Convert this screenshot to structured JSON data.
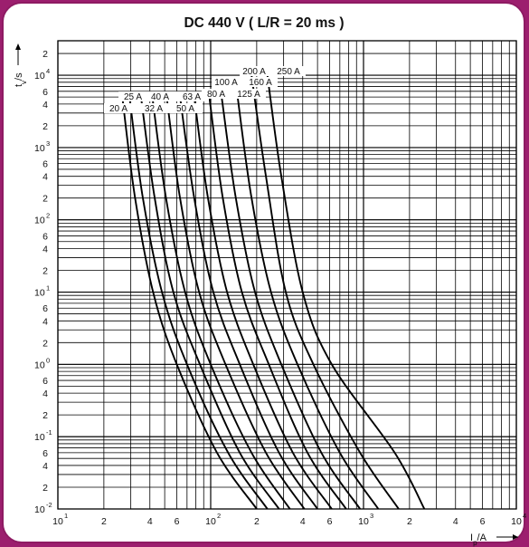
{
  "chart_data": {
    "type": "line",
    "title": "DC 440 V ( L/R = 20 ms )",
    "xlabel": "I_p/A",
    "ylabel": "t_v/s",
    "x_scale": "log",
    "y_scale": "log",
    "xlim": [
      10,
      10000
    ],
    "ylim": [
      0.01,
      30000
    ],
    "x_ticks": [
      {
        "label": "10",
        "exp": "1"
      },
      {
        "label": "2"
      },
      {
        "label": "4"
      },
      {
        "label": "6"
      },
      {
        "label": "10",
        "exp": "2"
      },
      {
        "label": "2"
      },
      {
        "label": "4"
      },
      {
        "label": "6"
      },
      {
        "label": "10",
        "exp": "3"
      },
      {
        "label": "2"
      },
      {
        "label": "4"
      },
      {
        "label": "6"
      },
      {
        "label": "10",
        "exp": "4"
      }
    ],
    "y_ticks": [
      {
        "label": "2"
      },
      {
        "label": "10",
        "exp": "4"
      },
      {
        "label": "6"
      },
      {
        "label": "4"
      },
      {
        "label": "2"
      },
      {
        "label": "10",
        "exp": "3"
      },
      {
        "label": "6"
      },
      {
        "label": "4"
      },
      {
        "label": "2"
      },
      {
        "label": "10",
        "exp": "2"
      },
      {
        "label": "6"
      },
      {
        "label": "4"
      },
      {
        "label": "2"
      },
      {
        "label": "10",
        "exp": "1"
      },
      {
        "label": "6"
      },
      {
        "label": "4"
      },
      {
        "label": "2"
      },
      {
        "label": "10",
        "exp": "0"
      },
      {
        "label": "6"
      },
      {
        "label": "4"
      },
      {
        "label": "2"
      },
      {
        "label": "10",
        "exp": "-1"
      },
      {
        "label": "6"
      },
      {
        "label": "4"
      },
      {
        "label": "2"
      },
      {
        "label": "10",
        "exp": "-2"
      }
    ],
    "series": [
      {
        "name": "20 A",
        "points": [
          [
            26.4,
            5000
          ],
          [
            32,
            200
          ],
          [
            42,
            10
          ],
          [
            60,
            1
          ],
          [
            110,
            0.06
          ],
          [
            200,
            0.01
          ]
        ]
      },
      {
        "name": "25 A",
        "points": [
          [
            29.4,
            5000
          ],
          [
            36,
            200
          ],
          [
            48,
            10
          ],
          [
            70,
            1
          ],
          [
            130,
            0.06
          ],
          [
            235,
            0.01
          ]
        ]
      },
      {
        "name": "32 A",
        "points": [
          [
            35,
            5000
          ],
          [
            43,
            200
          ],
          [
            57,
            10
          ],
          [
            85,
            1
          ],
          [
            155,
            0.06
          ],
          [
            280,
            0.01
          ]
        ]
      },
      {
        "name": "40 A",
        "points": [
          [
            41.5,
            5000
          ],
          [
            51,
            200
          ],
          [
            68,
            10
          ],
          [
            100,
            1
          ],
          [
            185,
            0.06
          ],
          [
            330,
            0.01
          ]
        ]
      },
      {
        "name": "50 A",
        "points": [
          [
            51.5,
            5000
          ],
          [
            63,
            200
          ],
          [
            84,
            10
          ],
          [
            125,
            1
          ],
          [
            230,
            0.06
          ],
          [
            410,
            0.01
          ]
        ]
      },
      {
        "name": "63 A",
        "points": [
          [
            63,
            5000
          ],
          [
            78,
            200
          ],
          [
            104,
            10
          ],
          [
            155,
            1
          ],
          [
            280,
            0.06
          ],
          [
            500,
            0.01
          ]
        ]
      },
      {
        "name": "80 A",
        "points": [
          [
            78,
            5000
          ],
          [
            96,
            200
          ],
          [
            128,
            10
          ],
          [
            190,
            1
          ],
          [
            345,
            0.06
          ],
          [
            620,
            0.01
          ]
        ]
      },
      {
        "name": "100 A",
        "points": [
          [
            98,
            5000
          ],
          [
            120,
            200
          ],
          [
            160,
            10
          ],
          [
            240,
            1
          ],
          [
            430,
            0.06
          ],
          [
            770,
            0.01
          ]
        ]
      },
      {
        "name": "125 A",
        "points": [
          [
            118,
            5000
          ],
          [
            146,
            200
          ],
          [
            195,
            10
          ],
          [
            290,
            1
          ],
          [
            530,
            0.06
          ],
          [
            950,
            0.01
          ]
        ]
      },
      {
        "name": "160 A",
        "points": [
          [
            150,
            5000
          ],
          [
            185,
            200
          ],
          [
            248,
            10
          ],
          [
            370,
            1
          ],
          [
            700,
            0.06
          ],
          [
            1250,
            0.01
          ]
        ]
      },
      {
        "name": "200 A",
        "points": [
          [
            185,
            10000
          ],
          [
            230,
            400
          ],
          [
            310,
            10
          ],
          [
            470,
            1
          ],
          [
            950,
            0.06
          ],
          [
            1700,
            0.01
          ]
        ]
      },
      {
        "name": "250 A",
        "points": [
          [
            235,
            10000
          ],
          [
            290,
            400
          ],
          [
            400,
            10
          ],
          [
            620,
            1
          ],
          [
            1600,
            0.06
          ],
          [
            2500,
            0.01
          ]
        ]
      }
    ],
    "grid": true,
    "legend": "none"
  }
}
